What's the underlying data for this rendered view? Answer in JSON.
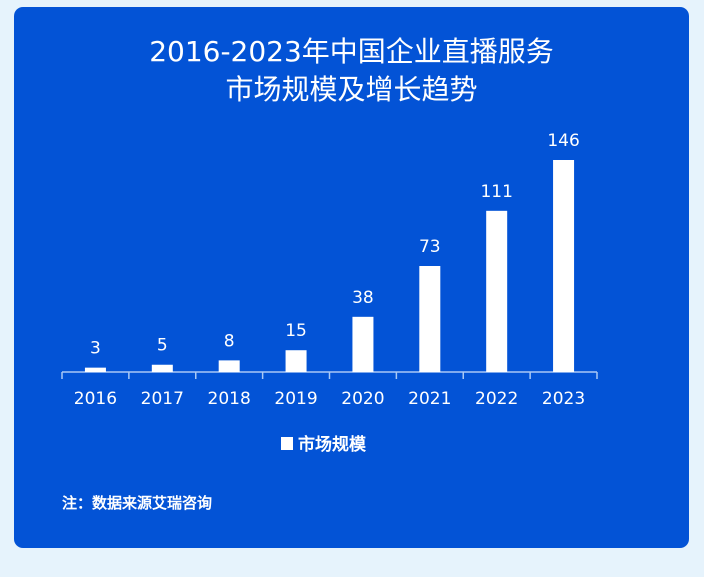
{
  "chart_data": {
    "type": "bar",
    "title_line1": "2016-2023年中国企业直播服务",
    "title_line2": "市场规模及增长趋势",
    "categories": [
      "2016",
      "2017",
      "2018",
      "2019",
      "2020",
      "2021",
      "2022",
      "2023"
    ],
    "series": [
      {
        "name": "市场规模",
        "values": [
          3,
          5,
          8,
          15,
          38,
          73,
          111,
          146
        ]
      }
    ],
    "xlabel": "",
    "ylabel": "",
    "ylim": [
      0,
      146
    ],
    "grid": false,
    "legend": "bottom-center",
    "bar_color": "#ffffff",
    "background_color": "#0353d6"
  },
  "note": "注：数据来源艾瑞咨询"
}
